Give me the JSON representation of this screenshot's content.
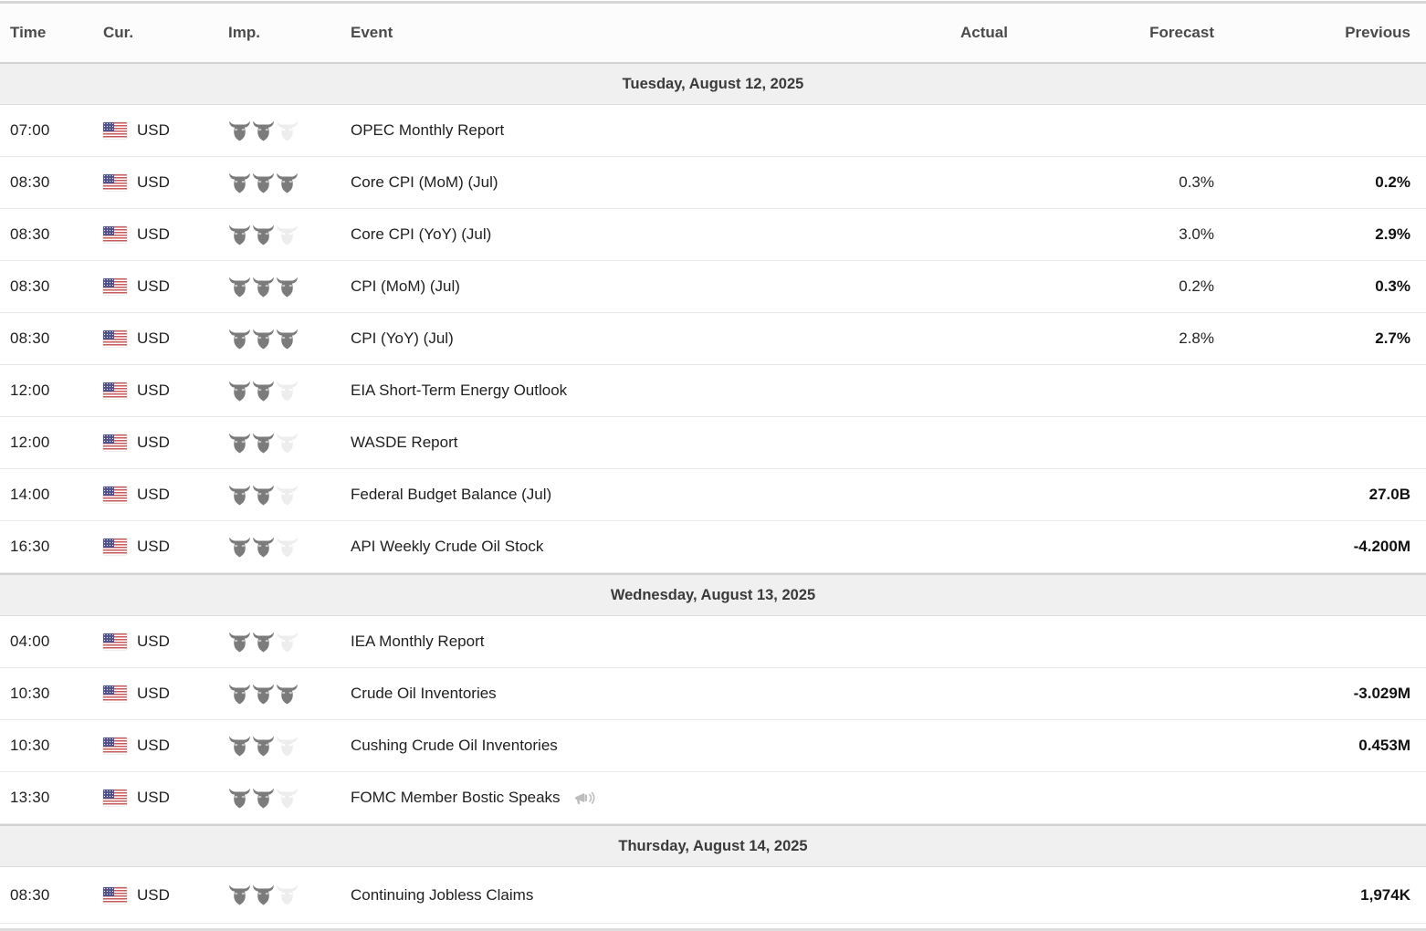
{
  "colors": {
    "bull_active": "#7b7b7b",
    "bull_inactive": "#ededed",
    "bull_eye": "#ffffff",
    "speech_icon": "#bdbdbd",
    "flag_red": "#c75b5b",
    "flag_blue": "#52528c"
  },
  "header": {
    "time_label": "Time",
    "currency_label": "Cur.",
    "importance_label": "Imp.",
    "event_label": "Event",
    "actual_label": "Actual",
    "forecast_label": "Forecast",
    "previous_label": "Previous"
  },
  "importance_max": 3,
  "sections": [
    {
      "date": "Tuesday, August 12, 2025",
      "rows": [
        {
          "time": "07:00",
          "currency": "USD",
          "flag": "us-flag-icon",
          "importance": 2,
          "event": "OPEC Monthly Report",
          "actual": "",
          "forecast": "",
          "previous": "",
          "speech": false
        },
        {
          "time": "08:30",
          "currency": "USD",
          "flag": "us-flag-icon",
          "importance": 3,
          "event": "Core CPI (MoM) (Jul)",
          "actual": "",
          "forecast": "0.3%",
          "previous": "0.2%",
          "speech": false
        },
        {
          "time": "08:30",
          "currency": "USD",
          "flag": "us-flag-icon",
          "importance": 2,
          "event": "Core CPI (YoY) (Jul)",
          "actual": "",
          "forecast": "3.0%",
          "previous": "2.9%",
          "speech": false
        },
        {
          "time": "08:30",
          "currency": "USD",
          "flag": "us-flag-icon",
          "importance": 3,
          "event": "CPI (MoM) (Jul)",
          "actual": "",
          "forecast": "0.2%",
          "previous": "0.3%",
          "speech": false
        },
        {
          "time": "08:30",
          "currency": "USD",
          "flag": "us-flag-icon",
          "importance": 3,
          "event": "CPI (YoY) (Jul)",
          "actual": "",
          "forecast": "2.8%",
          "previous": "2.7%",
          "speech": false
        },
        {
          "time": "12:00",
          "currency": "USD",
          "flag": "us-flag-icon",
          "importance": 2,
          "event": "EIA Short-Term Energy Outlook",
          "actual": "",
          "forecast": "",
          "previous": "",
          "speech": false
        },
        {
          "time": "12:00",
          "currency": "USD",
          "flag": "us-flag-icon",
          "importance": 2,
          "event": "WASDE Report",
          "actual": "",
          "forecast": "",
          "previous": "",
          "speech": false
        },
        {
          "time": "14:00",
          "currency": "USD",
          "flag": "us-flag-icon",
          "importance": 2,
          "event": "Federal Budget Balance (Jul)",
          "actual": "",
          "forecast": "",
          "previous": "27.0B",
          "speech": false
        },
        {
          "time": "16:30",
          "currency": "USD",
          "flag": "us-flag-icon",
          "importance": 2,
          "event": "API Weekly Crude Oil Stock",
          "actual": "",
          "forecast": "",
          "previous": "-4.200M",
          "speech": false
        }
      ]
    },
    {
      "date": "Wednesday, August 13, 2025",
      "rows": [
        {
          "time": "04:00",
          "currency": "USD",
          "flag": "us-flag-icon",
          "importance": 2,
          "event": "IEA Monthly Report",
          "actual": "",
          "forecast": "",
          "previous": "",
          "speech": false
        },
        {
          "time": "10:30",
          "currency": "USD",
          "flag": "us-flag-icon",
          "importance": 3,
          "event": "Crude Oil Inventories",
          "actual": "",
          "forecast": "",
          "previous": "-3.029M",
          "speech": false
        },
        {
          "time": "10:30",
          "currency": "USD",
          "flag": "us-flag-icon",
          "importance": 2,
          "event": "Cushing Crude Oil Inventories",
          "actual": "",
          "forecast": "",
          "previous": "0.453M",
          "speech": false
        },
        {
          "time": "13:30",
          "currency": "USD",
          "flag": "us-flag-icon",
          "importance": 2,
          "event": "FOMC Member Bostic Speaks",
          "actual": "",
          "forecast": "",
          "previous": "",
          "speech": true
        }
      ]
    },
    {
      "date": "Thursday, August 14, 2025",
      "rows": [
        {
          "time": "08:30",
          "currency": "USD",
          "flag": "us-flag-icon",
          "importance": 2,
          "event": "Continuing Jobless Claims",
          "actual": "",
          "forecast": "",
          "previous": "1,974K",
          "speech": false
        }
      ]
    }
  ]
}
